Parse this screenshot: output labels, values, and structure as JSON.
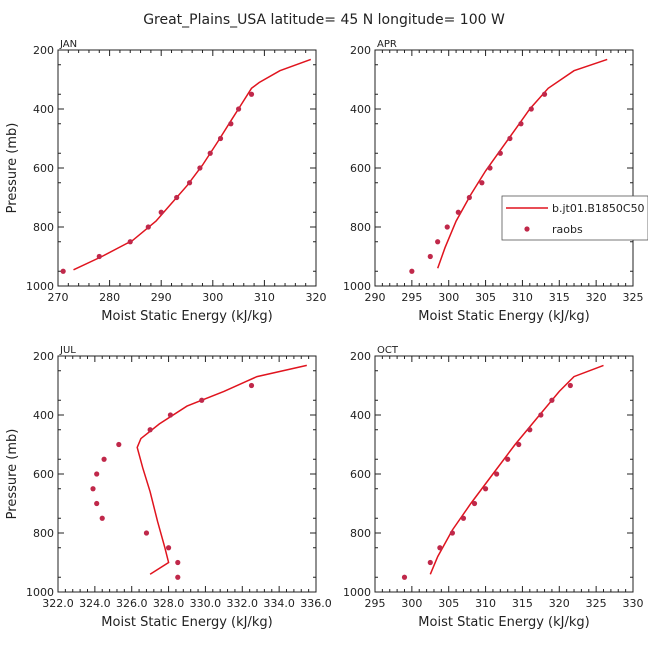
{
  "figure": {
    "title": "Great_Plains_USA   latitude= 45 N longitude= 100 W"
  },
  "legend": {
    "model_label": "b.jt01.B1850C50",
    "obs_label": "raobs",
    "model_color": "#e0141e",
    "obs_color": "#c0284a"
  },
  "chart_data": [
    {
      "type": "line",
      "panel": "JAN",
      "xlabel": "Moist Static Energy (kJ/kg)",
      "ylabel": "Pressure (mb)",
      "xlim": [
        270,
        320
      ],
      "ylim": [
        1000,
        200
      ],
      "y_inverted": true,
      "xticks": [
        270,
        280,
        290,
        300,
        310,
        320
      ],
      "xticklabels": [
        "270",
        "280",
        "290",
        "300",
        "310",
        "320"
      ],
      "yticks": [
        200,
        400,
        600,
        800,
        1000
      ],
      "yticklabels": [
        "200",
        "400",
        "600",
        "800",
        "1000"
      ],
      "legend": null,
      "series": [
        {
          "name": "b.jt01.B1850C50",
          "style": "line",
          "x": [
            273,
            278.5,
            284.5,
            289,
            292,
            295,
            298,
            301,
            303.5,
            305.5,
            307.5,
            309,
            313,
            319
          ],
          "y": [
            945,
            900,
            845,
            780,
            720,
            660,
            590,
            510,
            440,
            385,
            330,
            310,
            270,
            232
          ]
        },
        {
          "name": "raobs",
          "style": "points",
          "x": [
            271,
            278,
            284,
            287.5,
            290,
            293,
            295.5,
            297.5,
            299.5,
            301.5,
            303.5,
            305,
            307.5
          ],
          "y": [
            950,
            900,
            850,
            800,
            750,
            700,
            650,
            600,
            550,
            500,
            450,
            400,
            350
          ]
        }
      ]
    },
    {
      "type": "line",
      "panel": "APR",
      "xlabel": "Moist Static Energy (kJ/kg)",
      "ylabel": "",
      "xlim": [
        290,
        325
      ],
      "ylim": [
        1000,
        200
      ],
      "y_inverted": true,
      "xticks": [
        290,
        295,
        300,
        305,
        310,
        315,
        320,
        325
      ],
      "xticklabels": [
        "290",
        "295",
        "300",
        "305",
        "310",
        "315",
        "320",
        "325"
      ],
      "yticks": [
        200,
        400,
        600,
        800,
        1000
      ],
      "yticklabels": [
        "200",
        "400",
        "600",
        "800",
        "1000"
      ],
      "legend": "right",
      "series": [
        {
          "name": "b.jt01.B1850C50",
          "style": "line",
          "x": [
            298.5,
            299.5,
            301,
            303,
            305,
            307,
            309,
            311,
            313.5,
            317,
            321.5
          ],
          "y": [
            940,
            870,
            780,
            690,
            610,
            540,
            470,
            400,
            330,
            270,
            232
          ]
        },
        {
          "name": "raobs",
          "style": "points",
          "x": [
            295,
            297.5,
            298.5,
            299.8,
            301.3,
            302.8,
            304.5,
            305.6,
            307,
            308.3,
            309.8,
            311.2,
            313
          ],
          "y": [
            950,
            900,
            850,
            800,
            750,
            700,
            650,
            600,
            550,
            500,
            450,
            400,
            350
          ]
        }
      ]
    },
    {
      "type": "line",
      "panel": "JUL",
      "xlabel": "Moist Static Energy (kJ/kg)",
      "ylabel": "Pressure (mb)",
      "xlim": [
        322.0,
        336.0
      ],
      "ylim": [
        1000,
        200
      ],
      "y_inverted": true,
      "xticks": [
        322.0,
        324.0,
        326.0,
        328.0,
        330.0,
        332.0,
        334.0,
        336.0
      ],
      "xticklabels": [
        "322.0",
        "324.0",
        "326.0",
        "328.0",
        "330.0",
        "332.0",
        "334.0",
        "336.0"
      ],
      "yticks": [
        200,
        400,
        600,
        800,
        1000
      ],
      "yticklabels": [
        "200",
        "400",
        "600",
        "800",
        "1000"
      ],
      "legend": null,
      "series": [
        {
          "name": "b.jt01.B1850C50",
          "style": "line",
          "x": [
            327.0,
            328.0,
            327.8,
            327.4,
            327.0,
            326.6,
            326.3,
            326.5,
            327.5,
            329.0,
            331.0,
            332.8,
            335.5
          ],
          "y": [
            940,
            900,
            850,
            760,
            660,
            580,
            510,
            480,
            430,
            370,
            320,
            270,
            232
          ]
        },
        {
          "name": "raobs",
          "style": "points",
          "x": [
            328.5,
            328.5,
            328.0,
            326.8,
            324.4,
            324.1,
            323.9,
            324.1,
            324.5,
            325.3,
            327.0,
            328.1,
            329.8,
            332.5
          ],
          "y": [
            950,
            900,
            850,
            800,
            750,
            700,
            650,
            600,
            550,
            500,
            450,
            400,
            350,
            300
          ]
        }
      ]
    },
    {
      "type": "line",
      "panel": "OCT",
      "xlabel": "Moist Static Energy (kJ/kg)",
      "ylabel": "",
      "xlim": [
        295,
        330
      ],
      "ylim": [
        1000,
        200
      ],
      "y_inverted": true,
      "xticks": [
        295,
        300,
        305,
        310,
        315,
        320,
        325,
        330
      ],
      "xticklabels": [
        "295",
        "300",
        "305",
        "310",
        "315",
        "320",
        "325",
        "330"
      ],
      "yticks": [
        200,
        400,
        600,
        800,
        1000
      ],
      "yticklabels": [
        "200",
        "400",
        "600",
        "800",
        "1000"
      ],
      "legend": null,
      "series": [
        {
          "name": "b.jt01.B1850C50",
          "style": "line",
          "x": [
            302.5,
            303.5,
            305.5,
            308,
            311,
            314,
            317,
            320,
            322,
            326
          ],
          "y": [
            940,
            880,
            790,
            700,
            600,
            500,
            410,
            320,
            270,
            232
          ]
        },
        {
          "name": "raobs",
          "style": "points",
          "x": [
            299,
            302.5,
            303.8,
            305.5,
            307,
            308.5,
            310,
            311.5,
            313,
            314.5,
            316,
            317.5,
            319,
            321.5
          ],
          "y": [
            950,
            900,
            850,
            800,
            750,
            700,
            650,
            600,
            550,
            500,
            450,
            400,
            350,
            300
          ]
        }
      ]
    }
  ]
}
